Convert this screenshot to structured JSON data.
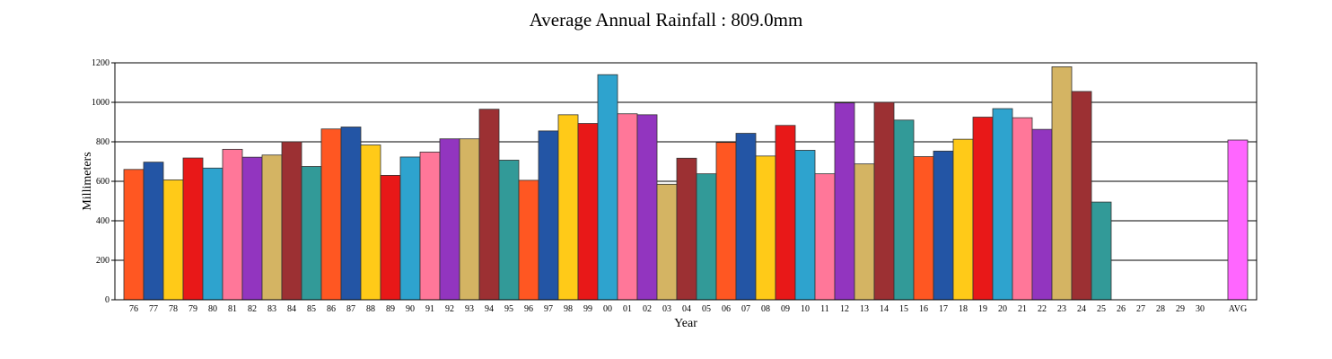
{
  "chart_data": {
    "type": "bar",
    "title": "Average Annual Rainfall : 809.0mm",
    "xlabel": "Year",
    "ylabel": "Millimeters",
    "ylim": [
      0,
      1200
    ],
    "yticks": [
      "0",
      "200",
      "400",
      "600",
      "800",
      "1000",
      "1200"
    ],
    "grid": true,
    "legend": "none",
    "categories": [
      "76",
      "77",
      "78",
      "79",
      "80",
      "81",
      "82",
      "83",
      "84",
      "85",
      "86",
      "87",
      "88",
      "89",
      "90",
      "91",
      "92",
      "93",
      "94",
      "95",
      "96",
      "97",
      "98",
      "99",
      "00",
      "01",
      "02",
      "03",
      "04",
      "05",
      "06",
      "07",
      "08",
      "09",
      "10",
      "11",
      "12",
      "13",
      "14",
      "15",
      "16",
      "17",
      "18",
      "19",
      "20",
      "21",
      "22",
      "23",
      "24",
      "25",
      "26",
      "27",
      "28",
      "29",
      "30",
      "AVG"
    ],
    "values": [
      660,
      697,
      607,
      718,
      667,
      762,
      722,
      733,
      800,
      675,
      865,
      875,
      784,
      630,
      723,
      748,
      815,
      815,
      965,
      707,
      605,
      855,
      937,
      893,
      1140,
      942,
      937,
      585,
      717,
      638,
      797,
      843,
      728,
      883,
      757,
      638,
      997,
      688,
      1000,
      910,
      725,
      753,
      813,
      925,
      968,
      922,
      863,
      1180,
      1055,
      495,
      null,
      null,
      null,
      null,
      null,
      809
    ],
    "colors": [
      "#FF5722",
      "#2355A5",
      "#FFCA18",
      "#E81818",
      "#2EA3CE",
      "#FF7799",
      "#9235BF",
      "#D4B463",
      "#9C3033",
      "#329A98"
    ],
    "avg_color": "#FF66FF"
  }
}
